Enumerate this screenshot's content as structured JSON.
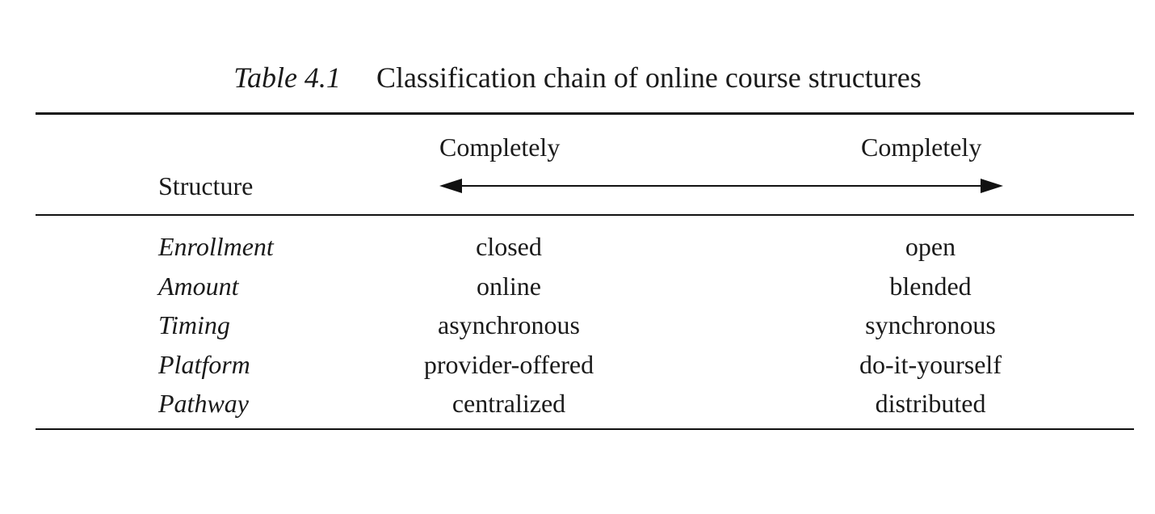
{
  "table": {
    "label": "Table 4.1",
    "title": "Classification chain of online course structures",
    "header": {
      "structure": "Structure",
      "left": "Completely",
      "right": "Completely"
    },
    "rows": [
      {
        "structure": "Enrollment",
        "left": "closed",
        "right": "open"
      },
      {
        "structure": "Amount",
        "left": "online",
        "right": "blended"
      },
      {
        "structure": "Timing",
        "left": "asynchronous",
        "right": "synchronous"
      },
      {
        "structure": "Platform",
        "left": "provider-offered",
        "right": "do-it-yourself"
      },
      {
        "structure": "Pathway",
        "left": "centralized",
        "right": "distributed"
      }
    ]
  }
}
